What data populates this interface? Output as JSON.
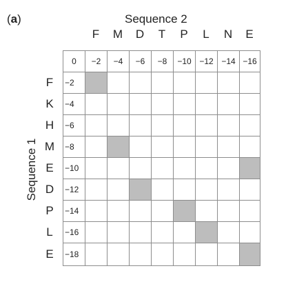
{
  "panel": {
    "open": "(",
    "letter": "a",
    "close": ")"
  },
  "sequence2_label": "Sequence 2",
  "sequence1_label": "Sequence 1",
  "sequence2_letters": [
    "F",
    "M",
    "D",
    "T",
    "P",
    "L",
    "N",
    "E"
  ],
  "sequence1_letters": [
    "F",
    "K",
    "H",
    "M",
    "E",
    "D",
    "P",
    "L",
    "E"
  ],
  "header_row_values": [
    "0",
    "−2",
    "−4",
    "−6",
    "−8",
    "−10",
    "−12",
    "−14",
    "−16"
  ],
  "header_col_values": [
    "−2",
    "−4",
    "−6",
    "−8",
    "−10",
    "−12",
    "−14",
    "−16",
    "−18"
  ],
  "shaded_cells": [
    [
      1,
      1
    ],
    [
      4,
      2
    ],
    [
      6,
      3
    ],
    [
      7,
      5
    ],
    [
      8,
      6
    ],
    [
      5,
      8
    ],
    [
      9,
      8
    ]
  ],
  "shade_color": "#bdbdbd"
}
